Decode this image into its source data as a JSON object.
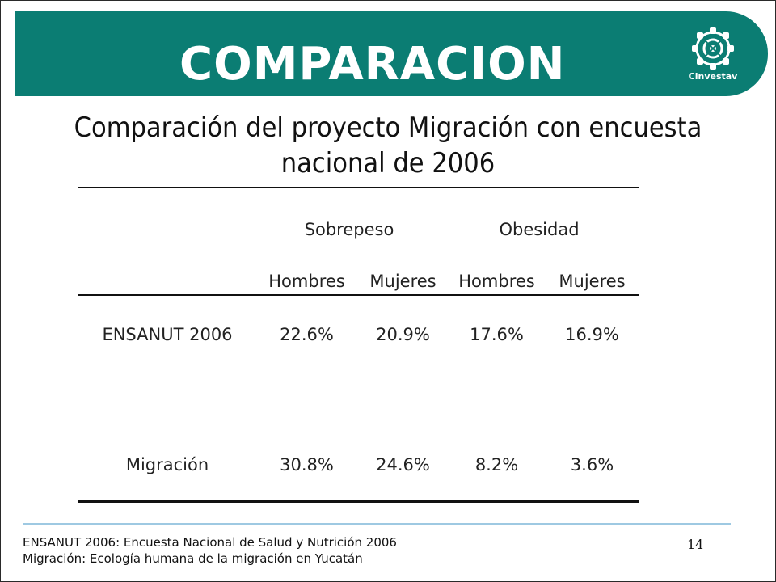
{
  "slide": {
    "title": "COMPARACION",
    "subtitle_line1": "Comparación del proyecto Migración con encuesta",
    "subtitle_line2": "nacional de 2006",
    "logo_text": "Cinvestav",
    "logo_icon": "cinvestav-emblem-icon",
    "page_number": "14",
    "colors": {
      "banner": "#0b7d73",
      "footer_line": "#9ec9e2"
    }
  },
  "table": {
    "groups": [
      "Sobrepeso",
      "Obesidad"
    ],
    "columns": [
      "Hombres",
      "Mujeres",
      "Hombres",
      "Mujeres"
    ],
    "rows": [
      {
        "label": "ENSANUT 2006",
        "values": [
          "22.6%",
          "20.9%",
          "17.6%",
          "16.9%"
        ]
      },
      {
        "label": "Migración",
        "values": [
          "30.8%",
          "24.6%",
          "8.2%",
          "3.6%"
        ]
      }
    ]
  },
  "notes": {
    "line1": "ENSANUT 2006: Encuesta Nacional de Salud y Nutrición 2006",
    "line2": "Migración: Ecología humana de la migración en Yucatán"
  }
}
